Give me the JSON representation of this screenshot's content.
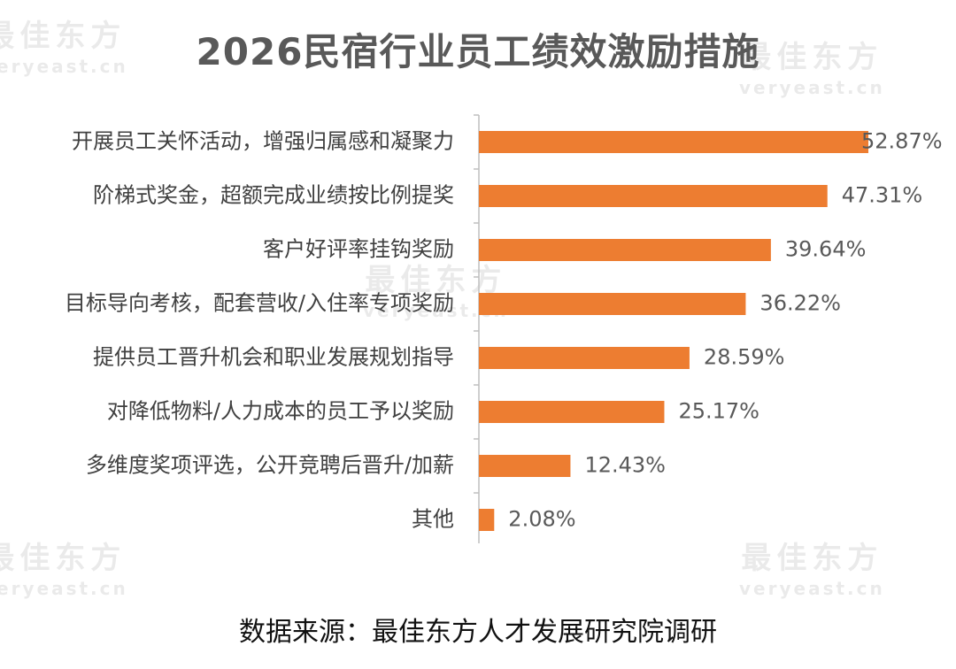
{
  "watermark": {
    "cn": "最佳东方",
    "en": "veryeast.cn"
  },
  "source_text": "数据来源：最佳东方人才发展研究院调研",
  "colors": {
    "bar": "#ED7D31",
    "axis": "#BFBFBF",
    "label": "#404040",
    "value": "#595959",
    "title": "#595959"
  },
  "chart_data": {
    "type": "bar",
    "orientation": "horizontal",
    "title": "2026民宿行业员工绩效激励措施",
    "categories": [
      "开展员工关怀活动，增强归属感和凝聚力",
      "阶梯式奖金，超额完成业绩按比例提奖",
      "客户好评率挂钩奖励",
      "目标导向考核，配套营收/入住率专项奖励",
      "提供员工晋升机会和职业发展规划指导",
      "对降低物料/人力成本的员工予以奖励",
      "多维度奖项评选，公开竞聘后晋升/加薪",
      "其他"
    ],
    "values": [
      52.87,
      47.31,
      39.64,
      36.22,
      28.59,
      25.17,
      12.43,
      2.08
    ],
    "value_labels": [
      "52.87%",
      "47.31%",
      "39.64%",
      "36.22%",
      "28.59%",
      "25.17%",
      "12.43%",
      "2.08%"
    ],
    "xlim": [
      0,
      52.87
    ],
    "grid": false,
    "legend": "none"
  }
}
